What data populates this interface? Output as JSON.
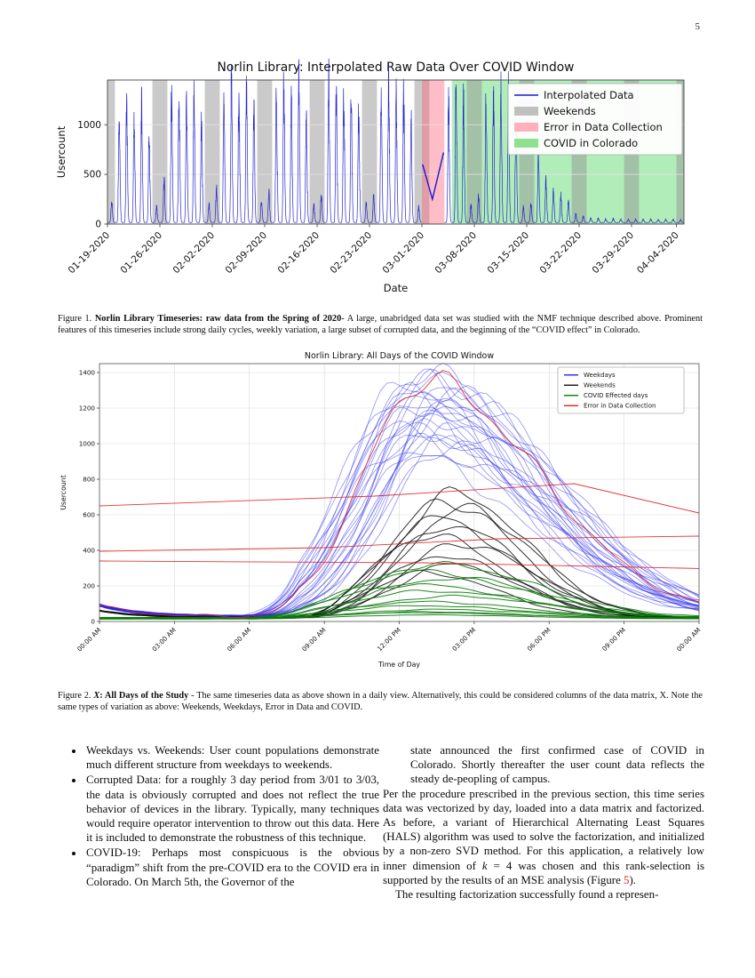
{
  "page": {
    "number": "5"
  },
  "figure1": {
    "caption_parts": [
      {
        "t": "Figure 1.  ",
        "s": "normal"
      },
      {
        "t": "Norlin Library Timeseries: raw data from the Spring of 2020",
        "s": "bold"
      },
      {
        "t": "- A large, unabridged data set was studied with the NMF technique described above. Prominent features of this timeseries include strong daily cycles, weekly variation, a large subset of corrupted data, and the beginning of the “COVID effect” in Colorado.",
        "s": "normal"
      }
    ]
  },
  "figure2": {
    "caption_parts": [
      {
        "t": "Figure 2.  ",
        "s": "normal"
      },
      {
        "t": "X",
        "s": "bolditalic"
      },
      {
        "t": ": All Days of the Study",
        "s": "bold"
      },
      {
        "t": " - The same timeseries data as above shown in a daily view. Alternatively, this could be considered columns of the data matrix, X. Note the same types of variation as above: Weekends, Weekdays, Error in Data and COVID.",
        "s": "normal"
      }
    ]
  },
  "body": {
    "left_column": {
      "bullets": [
        "Weekdays vs. Weekends: User count populations demonstrate much different structure from weekdays to weekends.",
        "Corrupted Data: for a roughly 3 day period from 3/01 to 3/03, the data is obviously corrupted and does not reflect the true behavior of devices in the library. Typically, many techniques would require operator intervention to throw out this data. Here it is included to demonstrate the robustness of this technique.",
        "COVID-19: Perhaps most conspicuous is the obvious “paradigm” shift from the pre-COVID era to the COVID era in Colorado. On March 5th, the Governor of the"
      ]
    },
    "right_column": {
      "bullet_continuation": "state announced the first confirmed case of COVID in Colorado. Shortly thereafter the user count data reflects the steady de-peopling of campus.",
      "paragraph1_parts": [
        {
          "t": "Per the procedure prescribed in the previous section, this time series data was vectorized by day, loaded into a data matrix and factorized. As before, a variant of Hierarchical Alternating Least Squares (HALS) algorithm was used to solve the factorization, and initialized by a non-zero SVD method. For this application, a relatively low inner dimension of ",
          "s": "normal"
        },
        {
          "t": "k",
          "s": "italic"
        },
        {
          "t": " = 4 was chosen and this rank-selection is supported by the results of an MSE analysis (Figure ",
          "s": "normal"
        },
        {
          "t": "5",
          "s": "link"
        },
        {
          "t": ").",
          "s": "normal"
        }
      ],
      "paragraph2": "The resulting factorization successfully found a represen-"
    }
  },
  "chart_data": [
    {
      "id": "figure1",
      "type": "line",
      "title": "Norlin Library: Interpolated Raw Data Over COVID Window",
      "xlabel": "Date",
      "ylabel": "Usercount",
      "ylim": [
        0,
        1450
      ],
      "yticks": [
        0,
        500,
        1000
      ],
      "xtick_labels": [
        "01-19-2020",
        "01-26-2020",
        "02-02-2020",
        "02-09-2020",
        "02-16-2020",
        "02-23-2020",
        "03-01-2020",
        "03-08-2020",
        "03-15-2020",
        "03-22-2020",
        "03-29-2020",
        "04-04-2020"
      ],
      "xtick_days": [
        0,
        7,
        14,
        21,
        28,
        35,
        42,
        49,
        56,
        63,
        70,
        76
      ],
      "days_total": 77,
      "legend": [
        {
          "label": "Interpolated Data",
          "color": "#1a1acd",
          "style": "line"
        },
        {
          "label": "Weekends",
          "color": "#c0c0c0",
          "style": "patch"
        },
        {
          "label": "Error in Data Collection",
          "color": "#ffb0bd",
          "style": "patch"
        },
        {
          "label": "COVID in Colorado",
          "color": "#8fe18f",
          "style": "patch"
        }
      ],
      "line_color": "#1a1acd",
      "band_colors": {
        "weekend": "rgba(150,150,150,0.5)",
        "error": "rgba(255,90,115,0.4)",
        "covid": "rgba(60,210,80,0.4)"
      },
      "weekend_bands": [
        [
          0,
          1
        ],
        [
          6,
          8
        ],
        [
          13,
          15
        ],
        [
          20,
          22
        ],
        [
          27,
          29
        ],
        [
          34,
          36
        ],
        [
          41,
          43
        ],
        [
          48,
          50
        ],
        [
          55,
          57
        ],
        [
          62,
          64
        ],
        [
          69,
          71
        ],
        [
          76,
          77
        ]
      ],
      "error_band": [
        42,
        45
      ],
      "covid_band": [
        46,
        77
      ],
      "daily_peaks": [
        210,
        1120,
        1180,
        1000,
        1150,
        830,
        150,
        420,
        1250,
        1300,
        1150,
        1230,
        980,
        180,
        350,
        1310,
        1420,
        1280,
        1350,
        1100,
        200,
        300,
        1280,
        1350,
        1200,
        1390,
        1060,
        170,
        280,
        1400,
        1310,
        1260,
        1330,
        1150,
        190,
        260,
        1350,
        1410,
        1300,
        1260,
        1010,
        150,
        0,
        0,
        0,
        1230,
        1380,
        1190,
        170,
        260,
        1260,
        1200,
        1340,
        1280,
        1060,
        150,
        190,
        620,
        430,
        310,
        260,
        210,
        80,
        60,
        45,
        40,
        35,
        38,
        32,
        28,
        30,
        30,
        32,
        28,
        30,
        29,
        27
      ],
      "interpolated_segment": [
        [
          42.1,
          600
        ],
        [
          43.4,
          250
        ],
        [
          44.9,
          720
        ]
      ]
    },
    {
      "id": "figure2",
      "type": "line",
      "title": "Norlin Library: All Days of the COVID Window",
      "xlabel": "Time of Day",
      "ylabel": "Usercount",
      "ylim": [
        0,
        1450
      ],
      "yticks": [
        0,
        200,
        400,
        600,
        800,
        1000,
        1200,
        1400
      ],
      "xtick_labels": [
        "00:00 AM",
        "03:00 AM",
        "06:00 AM",
        "09:00 AM",
        "12:00 PM",
        "03:00 PM",
        "06:00 PM",
        "09:00 PM",
        "00:00 AM"
      ],
      "xtick_hours": [
        0,
        3,
        6,
        9,
        12,
        15,
        18,
        21,
        24
      ],
      "grid": true,
      "legend": [
        {
          "label": "Weekdays",
          "color": "#2222ee"
        },
        {
          "label": "Weekends",
          "color": "#111111"
        },
        {
          "label": "COVID Effected days",
          "color": "#0a7a0a"
        },
        {
          "label": "Error in Data Collection",
          "color": "#e02020"
        }
      ],
      "weekday_curves": [
        [
          1380,
          12.8
        ],
        [
          1340,
          13.4
        ],
        [
          1300,
          12.2
        ],
        [
          1275,
          13.9
        ],
        [
          1245,
          12.5
        ],
        [
          1215,
          14.0
        ],
        [
          1185,
          11.9
        ],
        [
          1160,
          13.2
        ],
        [
          1135,
          12.7
        ],
        [
          1105,
          13.6
        ],
        [
          1080,
          12.1
        ],
        [
          1055,
          14.2
        ],
        [
          1025,
          12.9
        ],
        [
          1000,
          13.1
        ],
        [
          980,
          12.4
        ],
        [
          955,
          13.8
        ],
        [
          935,
          12.0
        ],
        [
          915,
          13.3
        ],
        [
          1360,
          13.0
        ],
        [
          1325,
          12.6
        ],
        [
          1290,
          13.5
        ],
        [
          1260,
          12.3
        ],
        [
          1230,
          14.1
        ],
        [
          1195,
          12.8
        ],
        [
          1145,
          13.7
        ],
        [
          1060,
          12.6
        ]
      ],
      "weekend_curves": [
        [
          700,
          14.2
        ],
        [
          655,
          13.8
        ],
        [
          615,
          14.5
        ],
        [
          560,
          13.5
        ],
        [
          520,
          14.0
        ],
        [
          465,
          13.2
        ],
        [
          420,
          14.4
        ],
        [
          350,
          13.6
        ],
        [
          300,
          14.1
        ],
        [
          255,
          13.0
        ]
      ],
      "covid_curves": [
        [
          300,
          13.5
        ],
        [
          265,
          13.0
        ],
        [
          225,
          13.8
        ],
        [
          185,
          12.6
        ],
        [
          150,
          13.2
        ],
        [
          120,
          14.0
        ],
        [
          95,
          13.0
        ],
        [
          70,
          12.8
        ],
        [
          52,
          13.4
        ],
        [
          40,
          13.0
        ],
        [
          30,
          12.5
        ],
        [
          22,
          13.0
        ]
      ],
      "error_lines": [
        [
          [
            0,
            650
          ],
          [
            11,
            705
          ],
          [
            19,
            775
          ],
          [
            24,
            610
          ]
        ],
        [
          [
            0,
            395
          ],
          [
            9,
            415
          ],
          [
            16,
            465
          ],
          [
            24,
            480
          ]
        ],
        [
          [
            0,
            340
          ],
          [
            13,
            330
          ],
          [
            24,
            298
          ]
        ]
      ],
      "error_bell": [
        1330,
        13.0
      ]
    }
  ]
}
